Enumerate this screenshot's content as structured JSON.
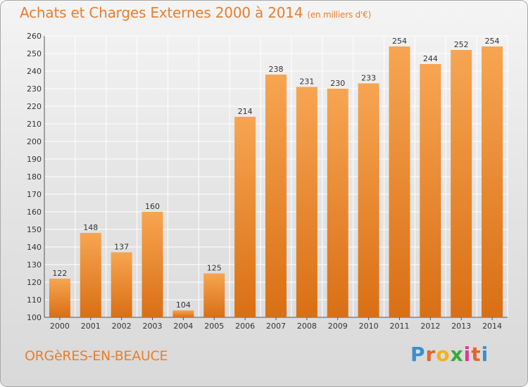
{
  "header": {
    "title": "Achats et Charges Externes 2000 à 2014",
    "unit": "(en milliers d'€)"
  },
  "footer": {
    "commune": "ORGèRES-EN-BEAUCE",
    "logo_letters": [
      "P",
      "r",
      "o",
      "x",
      "i",
      "t",
      "i"
    ],
    "logo_colors": [
      "#3a8fd0",
      "#e2672a",
      "#f2b21b",
      "#3aa83a",
      "#d93c8c",
      "#e2672a",
      "#3a8fd0"
    ]
  },
  "colors": {
    "bar_top": "#f7a552",
    "bar_bottom": "#d96f14",
    "text": "#e87e2c",
    "axis_text": "#333333",
    "grid": "#ffffff"
  },
  "chart_data": {
    "type": "bar",
    "title": "Achats et Charges Externes 2000 à 2014",
    "subtitle": "(en milliers d'€)",
    "categories": [
      "2000",
      "2001",
      "2002",
      "2003",
      "2004",
      "2005",
      "2006",
      "2007",
      "2008",
      "2009",
      "2010",
      "2011",
      "2012",
      "2013",
      "2014"
    ],
    "values": [
      122,
      148,
      137,
      160,
      104,
      125,
      214,
      238,
      231,
      230,
      233,
      254,
      244,
      252,
      254
    ],
    "ylim": [
      100,
      260
    ],
    "yticks": [
      100,
      110,
      120,
      130,
      140,
      150,
      160,
      170,
      180,
      190,
      200,
      210,
      220,
      230,
      240,
      250,
      260
    ],
    "grid": true,
    "data_labels": true
  }
}
